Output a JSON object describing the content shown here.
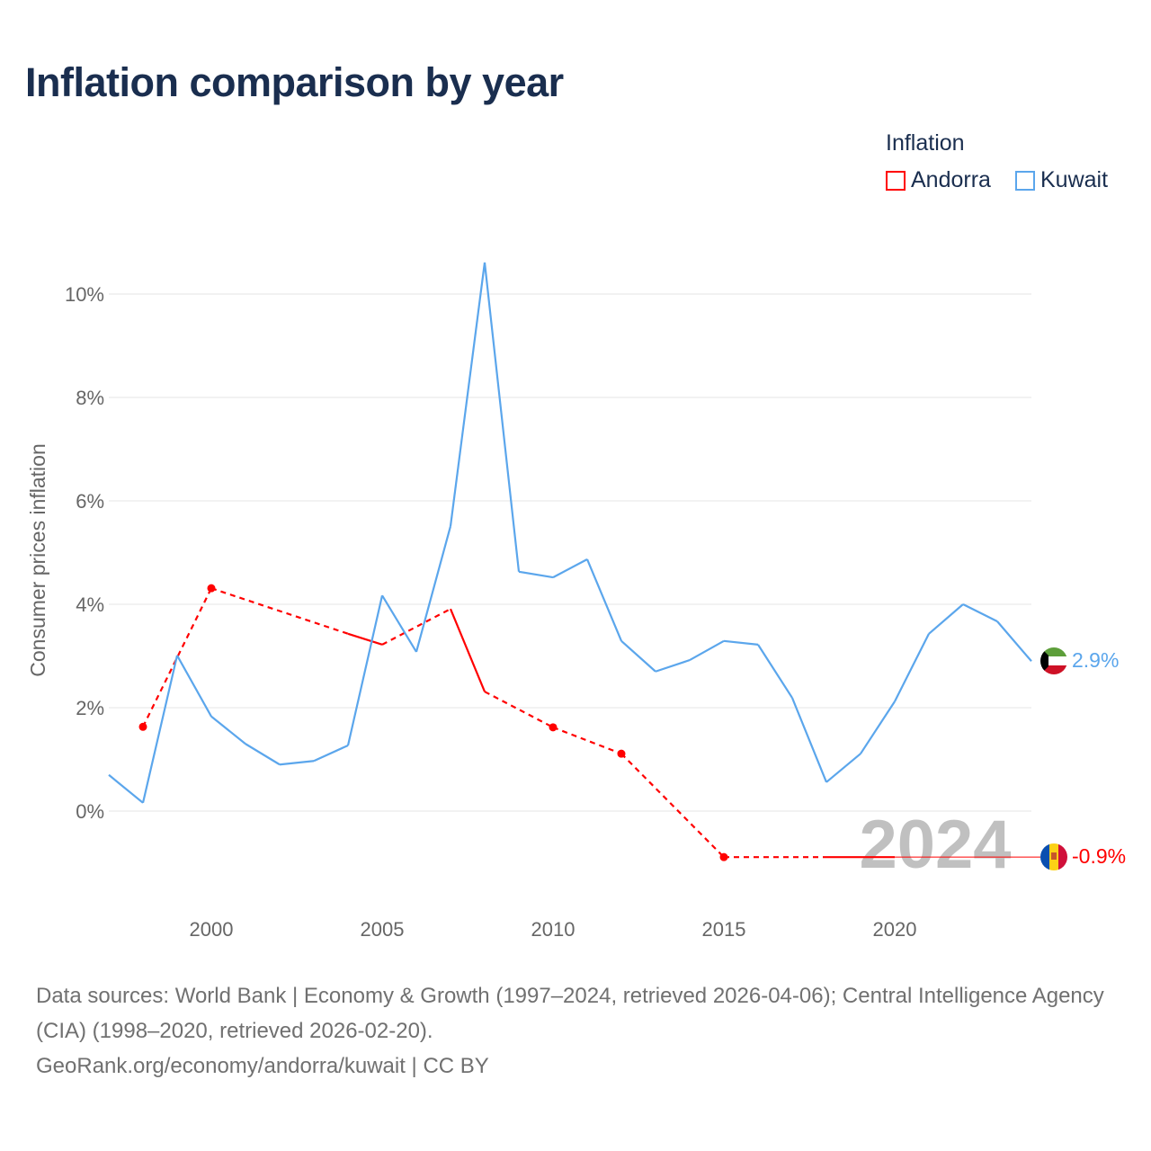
{
  "title": "Inflation comparison by year",
  "legend": {
    "title": "Inflation",
    "items": [
      {
        "name": "Andorra",
        "color": "#ff0000"
      },
      {
        "name": "Kuwait",
        "color": "#5ba6ec"
      }
    ]
  },
  "year_watermark": "2024",
  "end_labels": {
    "andorra": "-0.9%",
    "kuwait": "2.9%"
  },
  "source_lines": [
    "Data sources: World Bank | Economy & Growth (1997–2024, retrieved 2026-04-06); Central Intelligence Agency (CIA) (1998–2020, retrieved 2026-02-20).",
    "GeoRank.org/economy/andorra/kuwait | CC BY"
  ],
  "chart_data": {
    "type": "line",
    "title": "Inflation comparison by year",
    "xlabel": "",
    "ylabel": "Consumer prices inflation",
    "xlim": [
      1997,
      2024
    ],
    "ylim": [
      -1.8,
      11
    ],
    "x_ticks": [
      2000,
      2005,
      2010,
      2015,
      2020
    ],
    "y_ticks": [
      0,
      2,
      4,
      6,
      8,
      10
    ],
    "y_tick_labels": [
      "0%",
      "2%",
      "4%",
      "6%",
      "8%",
      "10%"
    ],
    "grid": true,
    "legend_position": "top-right",
    "series": [
      {
        "name": "Andorra",
        "color": "#ff0000",
        "x": [
          1998,
          2000,
          2004,
          2005,
          2007,
          2008,
          2010,
          2012,
          2015,
          2018,
          2019,
          2020
        ],
        "y": [
          1.63,
          4.31,
          3.43,
          3.22,
          3.91,
          2.31,
          1.62,
          1.11,
          -0.89,
          -0.89,
          -0.89,
          -0.89
        ]
      },
      {
        "name": "Kuwait",
        "color": "#5ba6ec",
        "x": [
          1997,
          1998,
          1999,
          2000,
          2001,
          2002,
          2003,
          2004,
          2005,
          2006,
          2007,
          2008,
          2009,
          2010,
          2011,
          2012,
          2013,
          2014,
          2015,
          2016,
          2017,
          2018,
          2019,
          2020,
          2021,
          2022,
          2023,
          2024
        ],
        "y": [
          0.7,
          0.16,
          3.01,
          1.83,
          1.3,
          0.9,
          0.97,
          1.27,
          4.17,
          3.08,
          5.51,
          10.61,
          4.63,
          4.52,
          4.87,
          3.29,
          2.7,
          2.92,
          3.29,
          3.22,
          2.19,
          0.56,
          1.11,
          2.12,
          3.43,
          4.0,
          3.67,
          2.9
        ]
      }
    ]
  }
}
